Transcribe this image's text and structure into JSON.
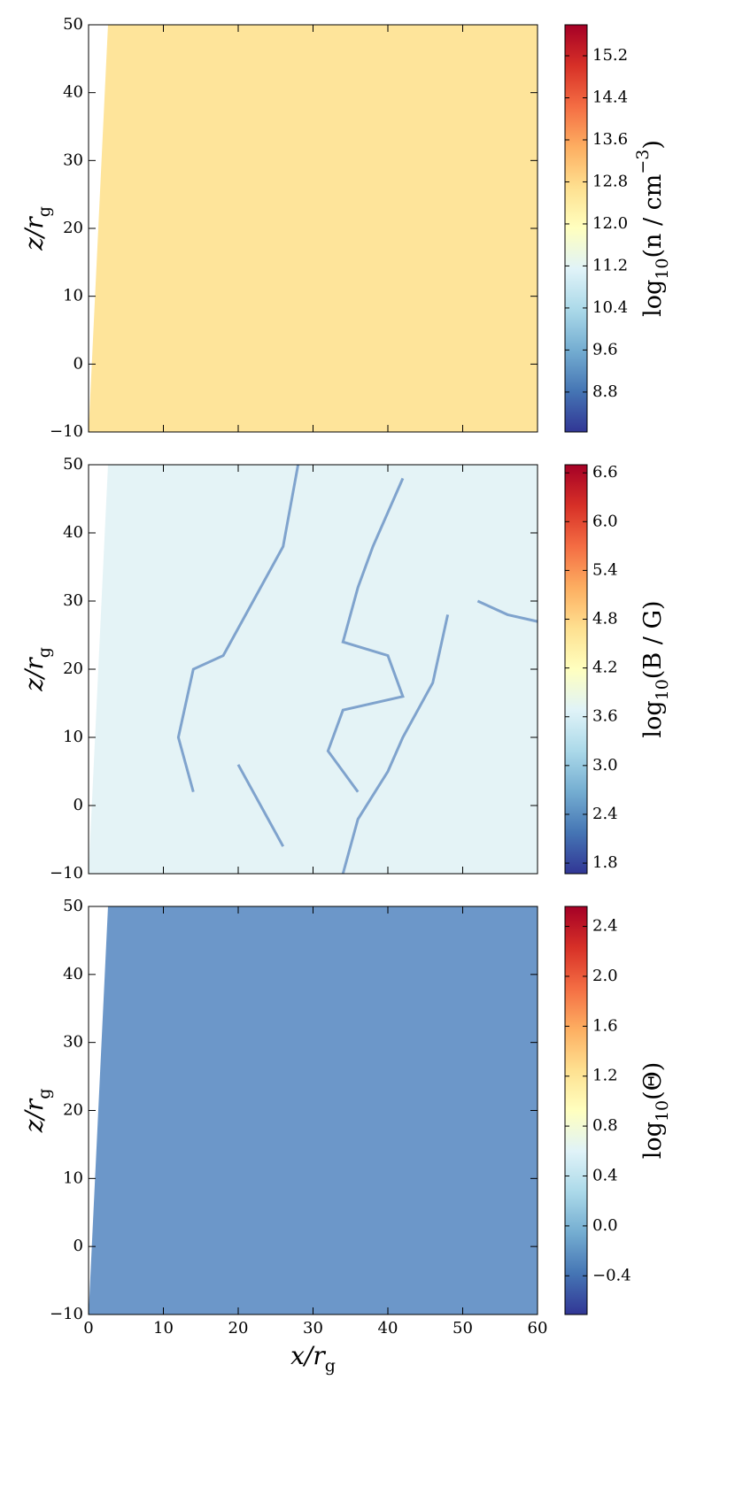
{
  "chart_data": [
    {
      "type": "heatmap",
      "xlim": [
        0,
        60
      ],
      "ylim": [
        -10,
        50
      ],
      "xticks": [
        0,
        10,
        20,
        30,
        40,
        50,
        60
      ],
      "xtick_labels_shown": false,
      "yticks": [
        {
          "value": -10,
          "label": "−10"
        },
        0,
        10,
        20,
        30,
        40,
        50
      ],
      "ylabel": [
        {
          "text": "z/r",
          "script": "normal"
        },
        {
          "text": "g",
          "script": "sub"
        }
      ],
      "colormap": [
        "#313695",
        "#4575b4",
        "#74add1",
        "#abd9e9",
        "#e0f3f8",
        "#ffffbf",
        "#fee090",
        "#fdae61",
        "#f46d43",
        "#d73027",
        "#a50026"
      ],
      "colorbar": {
        "clim": [
          8.04,
          15.79
        ],
        "ticks": [
          8.8,
          9.6,
          10.4,
          11.2,
          {
            "value": 12,
            "label": "12.0"
          },
          12.8,
          13.6,
          14.4,
          15.2
        ],
        "label": [
          {
            "text": "log",
            "script": "normal"
          },
          {
            "text": "10",
            "script": "sub"
          },
          {
            "text": "(n / cm",
            "script": "normal"
          },
          {
            "text": "−3",
            "script": "super"
          },
          {
            "text": ")",
            "script": "normal"
          }
        ]
      }
    },
    {
      "type": "heatmap",
      "xlim": [
        0,
        60
      ],
      "ylim": [
        -10,
        50
      ],
      "xticks": [
        0,
        10,
        20,
        30,
        40,
        50,
        60
      ],
      "xtick_labels_shown": false,
      "yticks": [
        {
          "value": -10,
          "label": "−10"
        },
        0,
        10,
        20,
        30,
        40,
        50
      ],
      "ylabel": [
        {
          "text": "z/r",
          "script": "normal"
        },
        {
          "text": "g",
          "script": "sub"
        }
      ],
      "colormap": [
        "#313695",
        "#4575b4",
        "#74add1",
        "#abd9e9",
        "#e0f3f8",
        "#ffffbf",
        "#fee090",
        "#fdae61",
        "#f46d43",
        "#d73027",
        "#a50026"
      ],
      "colorbar": {
        "clim": [
          1.67,
          6.7
        ],
        "ticks": [
          1.8,
          2.4,
          {
            "value": 3,
            "label": "3.0"
          },
          3.6,
          4.2,
          4.8,
          5.4,
          {
            "value": 6,
            "label": "6.0"
          },
          6.6
        ],
        "label": [
          {
            "text": "log",
            "script": "normal"
          },
          {
            "text": "10",
            "script": "sub"
          },
          {
            "text": "(B / G)",
            "script": "normal"
          }
        ]
      }
    },
    {
      "type": "heatmap",
      "xlim": [
        0,
        60
      ],
      "ylim": [
        -10,
        50
      ],
      "xticks": [
        0,
        10,
        20,
        30,
        40,
        50,
        60
      ],
      "xtick_labels_shown": true,
      "xlabel": [
        {
          "text": "x/r",
          "script": "normal"
        },
        {
          "text": "g",
          "script": "sub"
        }
      ],
      "yticks": [
        {
          "value": -10,
          "label": "−10"
        },
        0,
        10,
        20,
        30,
        40,
        50
      ],
      "ylabel": [
        {
          "text": "z/r",
          "script": "normal"
        },
        {
          "text": "g",
          "script": "sub"
        }
      ],
      "colormap": [
        "#313695",
        "#4575b4",
        "#74add1",
        "#abd9e9",
        "#e0f3f8",
        "#ffffbf",
        "#fee090",
        "#fdae61",
        "#f46d43",
        "#d73027",
        "#a50026"
      ],
      "colorbar": {
        "clim": [
          -0.71,
          2.56
        ],
        "ticks": [
          {
            "value": -0.4,
            "label": "−0.4"
          },
          {
            "value": 0,
            "label": "0.0"
          },
          0.4,
          0.8,
          1.2,
          1.6,
          {
            "value": 2,
            "label": "2.0"
          },
          2.4
        ],
        "label": [
          {
            "text": "log",
            "script": "normal"
          },
          {
            "text": "10",
            "script": "sub"
          },
          {
            "text": "(Θ)",
            "script": "normal"
          }
        ]
      }
    }
  ]
}
